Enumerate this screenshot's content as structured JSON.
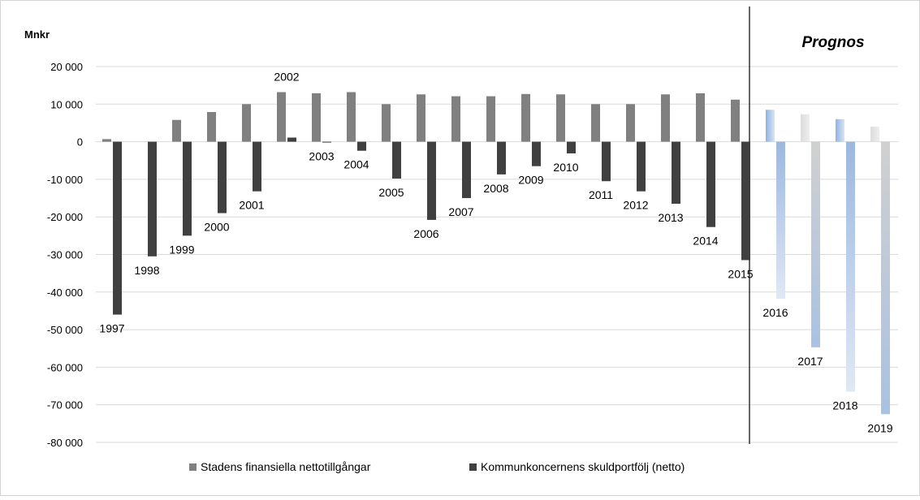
{
  "chart_data": {
    "type": "bar",
    "ylabel": "Mnkr",
    "ylim": [
      -80000,
      20000
    ],
    "yticks": [
      20000,
      10000,
      0,
      -10000,
      -20000,
      -30000,
      -40000,
      -50000,
      -60000,
      -70000,
      -80000
    ],
    "ytick_labels": [
      "20 000",
      "10 000",
      "0",
      "-10 000",
      "-20 000",
      "-30 000",
      "-40 000",
      "-50 000",
      "-60 000",
      "-70 000",
      "-80 000"
    ],
    "grid": true,
    "legend": "bottom",
    "categories": [
      "1997",
      "1998",
      "1999",
      "2000",
      "2001",
      "2002",
      "2003",
      "2004",
      "2005",
      "2006",
      "2007",
      "2008",
      "2009",
      "2010",
      "2011",
      "2012",
      "2013",
      "2014",
      "2015",
      "2016",
      "2017",
      "2018",
      "2019"
    ],
    "forecast_from": "2016",
    "forecast_label": "Prognos",
    "series": [
      {
        "name": "Stadens finansiella nettotillgångar",
        "color": "#808080",
        "values": [
          700,
          0,
          5800,
          7900,
          10000,
          13200,
          12900,
          13200,
          10000,
          12600,
          12100,
          12100,
          12700,
          12600,
          10000,
          10000,
          12600,
          12900,
          11200,
          8500,
          7300,
          6000,
          4000
        ]
      },
      {
        "name": "Kommunkoncernens skuldportfölj (netto)",
        "color": "#404040",
        "values": [
          -46000,
          -30500,
          -25000,
          -19000,
          -13200,
          1100,
          -200,
          -2400,
          -9800,
          -20800,
          -15000,
          -8700,
          -6500,
          -3100,
          -10500,
          -13200,
          -16500,
          -22700,
          -31500,
          -41800,
          -54700,
          -66500,
          -72500
        ]
      }
    ]
  }
}
